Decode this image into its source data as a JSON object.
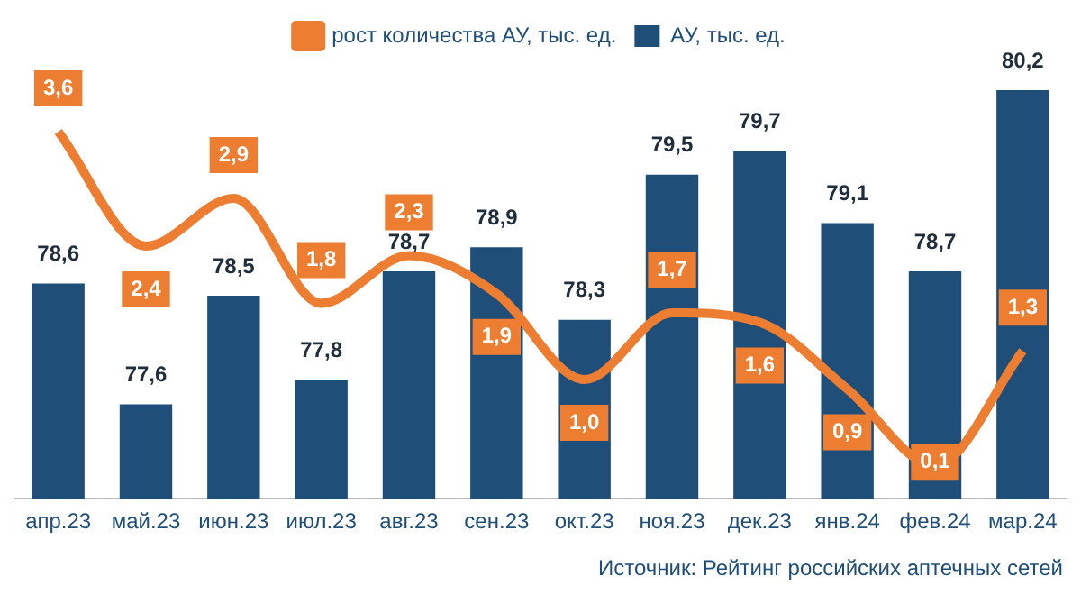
{
  "chart_data": {
    "type": "bar",
    "categories": [
      "апр.23",
      "май.23",
      "июн.23",
      "июл.23",
      "авг.23",
      "сен.23",
      "окт.23",
      "ноя.23",
      "дек.23",
      "янв.24",
      "фев.24",
      "мар.24"
    ],
    "series": [
      {
        "name": "АУ, тыс. ед.",
        "color": "#1f4e79",
        "values": [
          78.6,
          77.6,
          78.5,
          77.8,
          78.7,
          78.9,
          78.3,
          79.5,
          79.7,
          79.1,
          78.7,
          80.2
        ],
        "value_labels": [
          "78,6",
          "77,6",
          "78,5",
          "77,8",
          "78,7",
          "78,9",
          "78,3",
          "79,5",
          "79,7",
          "79,1",
          "78,7",
          "80,2"
        ]
      },
      {
        "name": "рост количества АУ, тыс. ед.",
        "type": "line",
        "axis": "y2",
        "color": "#ed7d31",
        "values": [
          3.6,
          2.4,
          2.9,
          1.8,
          2.3,
          1.9,
          1.0,
          1.7,
          1.6,
          0.9,
          0.1,
          1.3
        ],
        "value_labels": [
          "3,6",
          "2,4",
          "2,9",
          "1,8",
          "2,3",
          "1,9",
          "1,0",
          "1,7",
          "1,6",
          "0,9",
          "0,1",
          "1,3"
        ]
      }
    ],
    "legend": "top",
    "marker": "none",
    "annotations": [
      "Источник: Рейтинг российских аптечных сетей"
    ]
  }
}
